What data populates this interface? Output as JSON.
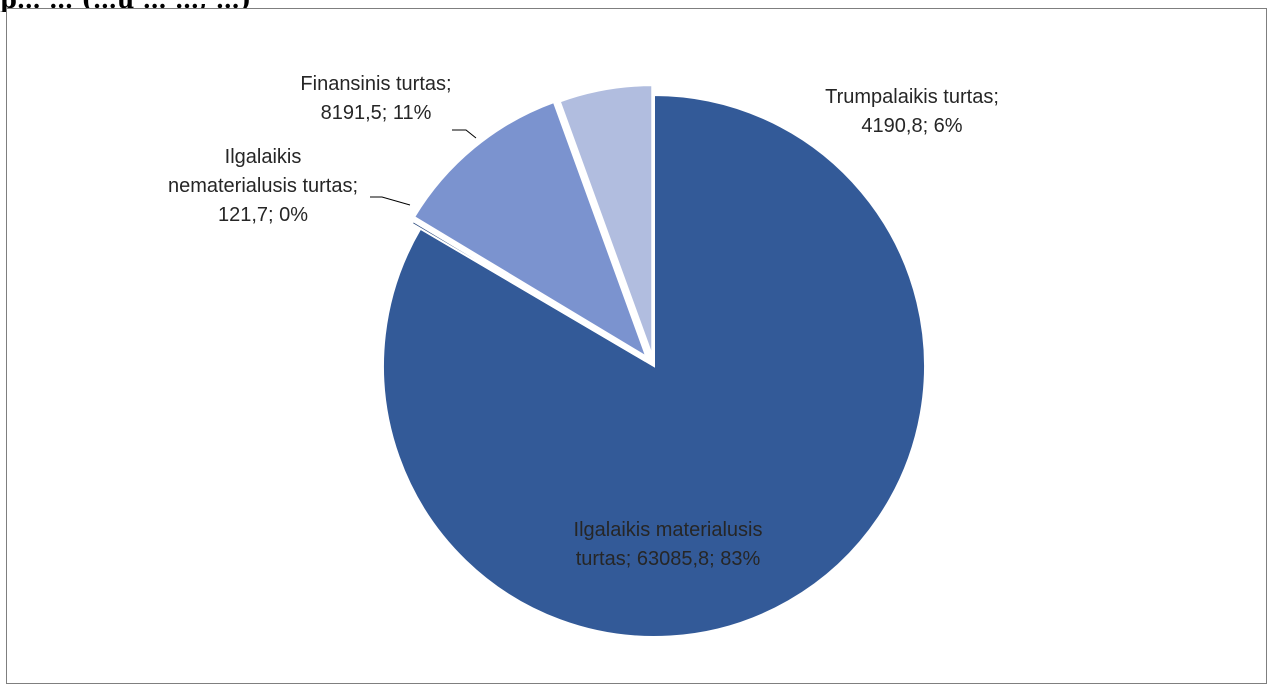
{
  "header": {
    "partial_title": "p… … (…ų … …, …)"
  },
  "chart_data": {
    "type": "pie",
    "title": "",
    "slices": [
      {
        "name": "Ilgalaikis materialusis turtas",
        "value": 63085.8,
        "percent": 83,
        "color": "#335A98",
        "label_lines": [
          "Ilgalaikis materialusis",
          "turtas; 63085,8; 83%"
        ]
      },
      {
        "name": "Ilgalaikis nematerialusis turtas",
        "value": 121.7,
        "percent": 0,
        "color": "#2F4E80",
        "label_lines": [
          "Ilgalaikis",
          "nematerialusis turtas;",
          "121,7; 0%"
        ]
      },
      {
        "name": "Finansinis turtas",
        "value": 8191.5,
        "percent": 11,
        "color": "#7B93CF",
        "label_lines": [
          "Finansinis turtas;",
          "8191,5; 11%"
        ]
      },
      {
        "name": "Trumpalaikis turtas",
        "value": 4190.8,
        "percent": 6,
        "color": "#B1BDDF",
        "label_lines": [
          "Trumpalaikis turtas;",
          "4190,8; 6%"
        ]
      }
    ],
    "start_angle": "top, clockwise",
    "exploded": true,
    "legend": "none"
  }
}
